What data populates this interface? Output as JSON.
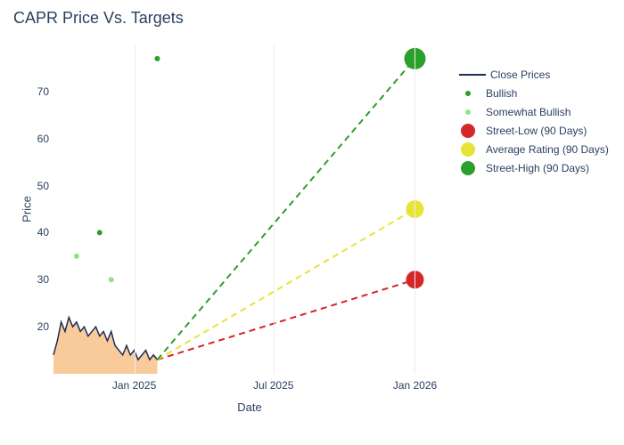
{
  "chart": {
    "title": "CAPR Price Vs. Targets",
    "x_label": "Date",
    "y_label": "Price",
    "title_fontsize": 18,
    "label_fontsize": 13,
    "tick_fontsize": 12,
    "text_color": "#2a3f5f",
    "background": "#ffffff",
    "grid_color": "#eeeeee",
    "ylim": [
      10,
      80
    ],
    "yticks": [
      20,
      30,
      40,
      50,
      60,
      70
    ],
    "x_range_days": [
      0,
      510
    ],
    "xticks": [
      {
        "day": 105,
        "label": "Jan 2025"
      },
      {
        "day": 286,
        "label": "Jul 2025"
      },
      {
        "day": 470,
        "label": "Jan 2026"
      }
    ],
    "close_prices": {
      "color": "#1f2c56",
      "fill_color": "#f9c896",
      "fill_opacity": 0.95,
      "line_width": 1.5,
      "points": [
        {
          "day": 0,
          "val": 14
        },
        {
          "day": 5,
          "val": 17
        },
        {
          "day": 10,
          "val": 21
        },
        {
          "day": 15,
          "val": 19
        },
        {
          "day": 20,
          "val": 22
        },
        {
          "day": 25,
          "val": 20
        },
        {
          "day": 30,
          "val": 21
        },
        {
          "day": 35,
          "val": 19
        },
        {
          "day": 40,
          "val": 20
        },
        {
          "day": 45,
          "val": 18
        },
        {
          "day": 50,
          "val": 19
        },
        {
          "day": 55,
          "val": 20
        },
        {
          "day": 60,
          "val": 18
        },
        {
          "day": 65,
          "val": 19
        },
        {
          "day": 70,
          "val": 17
        },
        {
          "day": 75,
          "val": 19
        },
        {
          "day": 80,
          "val": 16
        },
        {
          "day": 85,
          "val": 15
        },
        {
          "day": 90,
          "val": 14
        },
        {
          "day": 95,
          "val": 16
        },
        {
          "day": 100,
          "val": 14
        },
        {
          "day": 105,
          "val": 15
        },
        {
          "day": 110,
          "val": 13
        },
        {
          "day": 115,
          "val": 14
        },
        {
          "day": 120,
          "val": 15
        },
        {
          "day": 125,
          "val": 13
        },
        {
          "day": 130,
          "val": 14
        },
        {
          "day": 135,
          "val": 13
        }
      ]
    },
    "bullish_points": {
      "color": "#2ca02c",
      "marker_size": 6,
      "points": [
        {
          "day": 60,
          "val": 40
        },
        {
          "day": 135,
          "val": 77
        }
      ]
    },
    "somewhat_bullish_points": {
      "color": "#98df8a",
      "marker_size": 6,
      "points": [
        {
          "day": 30,
          "val": 35
        },
        {
          "day": 75,
          "val": 30
        }
      ]
    },
    "target_lines": {
      "origin": {
        "day": 135,
        "val": 13
      },
      "dash": "7,5",
      "line_width": 2,
      "targets": [
        {
          "name": "street-low",
          "color": "#d62728",
          "end_day": 470,
          "end_val": 30,
          "marker_size": 20
        },
        {
          "name": "average-rating",
          "color": "#e8e337",
          "end_day": 470,
          "end_val": 45,
          "marker_size": 20
        },
        {
          "name": "street-high",
          "color": "#2ca02c",
          "end_day": 470,
          "end_val": 77,
          "marker_size": 24
        }
      ]
    },
    "legend": {
      "items": [
        {
          "type": "line",
          "label": "Close Prices",
          "color": "#1f2c56"
        },
        {
          "type": "dot-sm",
          "label": "Bullish",
          "color": "#2ca02c"
        },
        {
          "type": "dot-sm",
          "label": "Somewhat Bullish",
          "color": "#98df8a"
        },
        {
          "type": "dot-lg",
          "label": "Street-Low (90 Days)",
          "color": "#d62728"
        },
        {
          "type": "dot-lg",
          "label": "Average Rating (90 Days)",
          "color": "#e8e337"
        },
        {
          "type": "dot-lg",
          "label": "Street-High (90 Days)",
          "color": "#2ca02c"
        }
      ]
    }
  }
}
